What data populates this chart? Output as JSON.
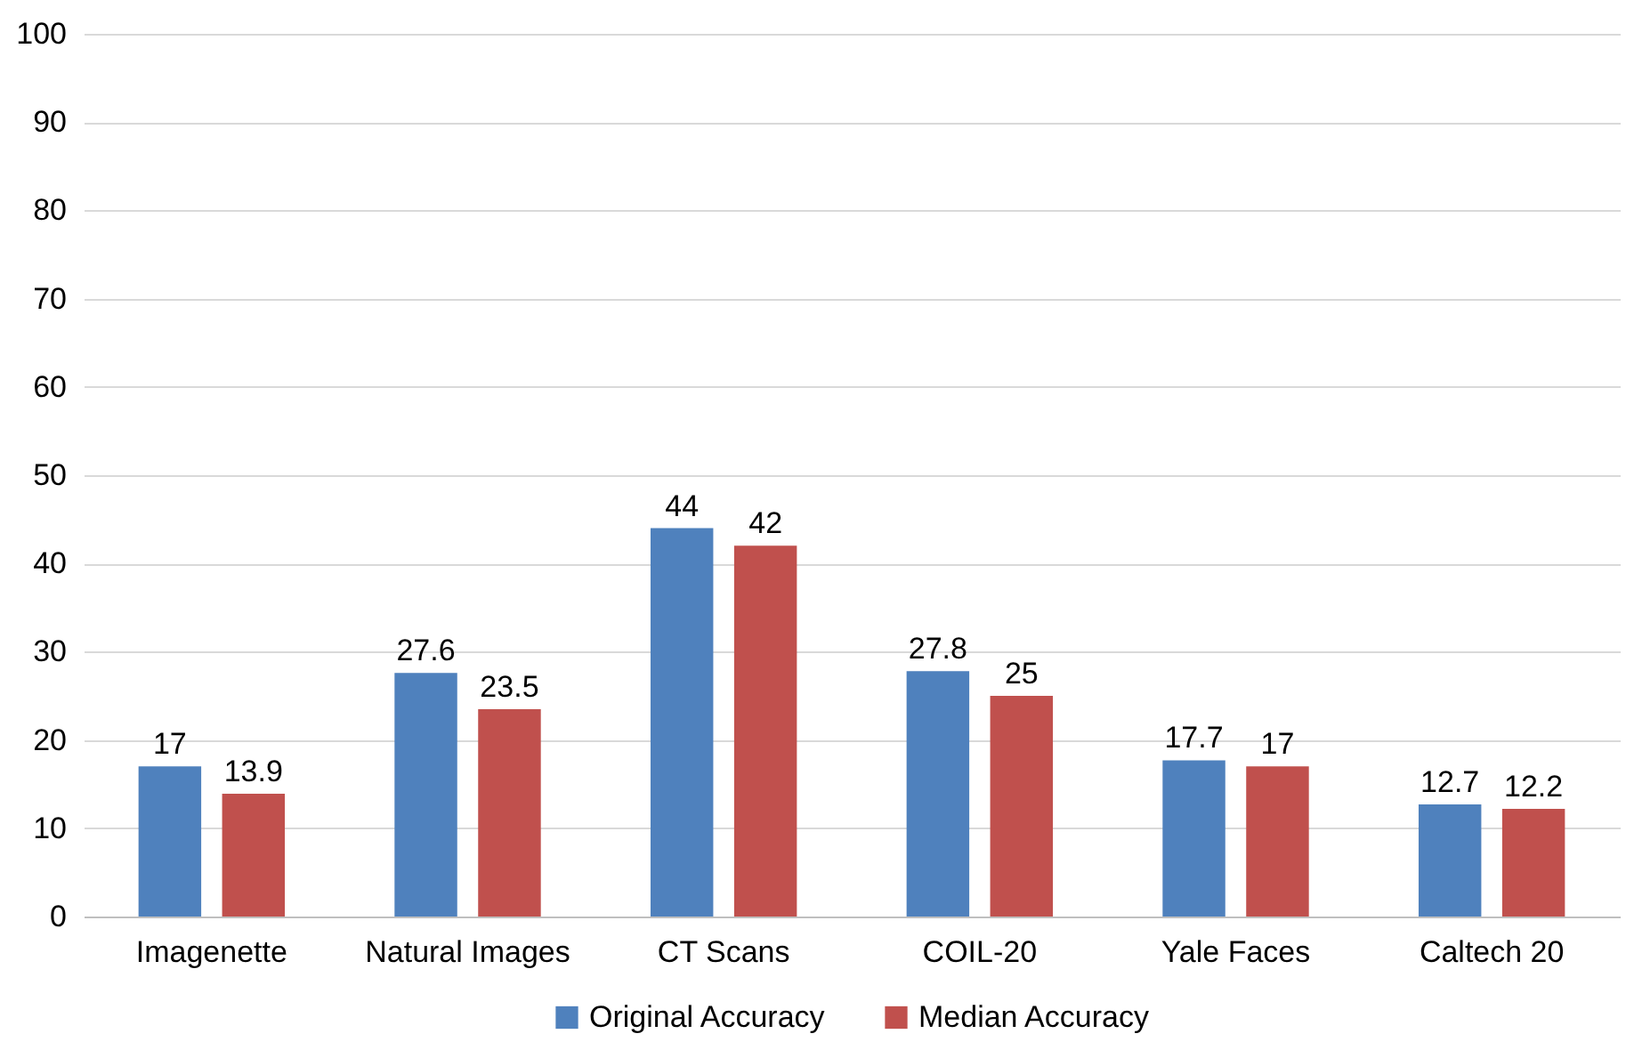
{
  "chart_data": {
    "type": "bar",
    "categories": [
      "Imagenette",
      "Natural Images",
      "CT Scans",
      "COIL-20",
      "Yale Faces",
      "Caltech 20"
    ],
    "series": [
      {
        "name": "Original Accuracy",
        "color": "#4f81bd",
        "values": [
          17,
          27.6,
          44,
          27.8,
          17.7,
          12.7
        ]
      },
      {
        "name": "Median Accuracy",
        "color": "#c0504d",
        "values": [
          13.9,
          23.5,
          42,
          25,
          17,
          12.2
        ]
      }
    ],
    "ylim": [
      0,
      100
    ],
    "yticks": [
      0,
      10,
      20,
      30,
      40,
      50,
      60,
      70,
      80,
      90,
      100
    ],
    "grid": "y",
    "legend": "bottom",
    "data_labels": true
  }
}
